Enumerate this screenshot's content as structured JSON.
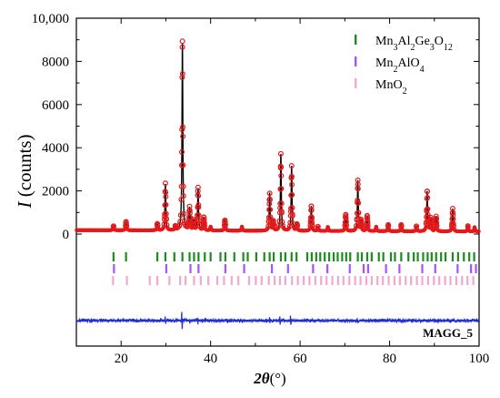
{
  "chart_data": {
    "type": "line",
    "title": "",
    "sample_label": "MAGG_5",
    "xlabel": {
      "var": "2θ",
      "unit": "(°)"
    },
    "ylabel": {
      "var": "I",
      "unit": " (counts)"
    },
    "xlim": [
      10,
      100
    ],
    "ylim": [
      0,
      10000
    ],
    "xticks": [
      20,
      40,
      60,
      80,
      100
    ],
    "yticks": [
      {
        "value": 0,
        "label": "0"
      },
      {
        "value": 2000,
        "label": "2000"
      },
      {
        "value": 4000,
        "label": "4000"
      },
      {
        "value": 6000,
        "label": "6000"
      },
      {
        "value": 8000,
        "label": "8000"
      },
      {
        "value": 10000,
        "label": "10,000"
      }
    ],
    "colors": {
      "observed": "#e31a1c",
      "calculated": "#000000",
      "difference": "#1f2fd6",
      "phase1": "#1c8c1c",
      "phase2": "#a455f5",
      "phase3": "#f3a7cf"
    },
    "background": 180,
    "peaks": [
      [
        18.3,
        200
      ],
      [
        21.1,
        390
      ],
      [
        28.1,
        300
      ],
      [
        29.9,
        2150
      ],
      [
        32.1,
        170
      ],
      [
        33.7,
        8650
      ],
      [
        35.3,
        1050
      ],
      [
        36.2,
        450
      ],
      [
        37.2,
        1950
      ],
      [
        38.5,
        600
      ],
      [
        40.0,
        180
      ],
      [
        43.2,
        480
      ],
      [
        47.0,
        180
      ],
      [
        53.2,
        1750
      ],
      [
        54.0,
        420
      ],
      [
        55.7,
        3550
      ],
      [
        58.1,
        3000
      ],
      [
        59.3,
        300
      ],
      [
        62.5,
        1150
      ],
      [
        64.0,
        200
      ],
      [
        66.2,
        180
      ],
      [
        70.2,
        750
      ],
      [
        72.9,
        2350
      ],
      [
        73.6,
        500
      ],
      [
        75.0,
        700
      ],
      [
        77.0,
        200
      ],
      [
        79.7,
        300
      ],
      [
        82.6,
        300
      ],
      [
        86.0,
        230
      ],
      [
        88.4,
        1850
      ],
      [
        89.2,
        600
      ],
      [
        90.4,
        700
      ],
      [
        94.1,
        1050
      ],
      [
        97.5,
        250
      ],
      [
        99.0,
        200
      ]
    ],
    "difference_features": [
      [
        29.9,
        500
      ],
      [
        33.6,
        1500
      ],
      [
        35.3,
        250
      ],
      [
        37.1,
        450
      ],
      [
        53.2,
        450
      ],
      [
        55.5,
        750
      ],
      [
        57.9,
        650
      ],
      [
        62.4,
        200
      ],
      [
        72.8,
        150
      ],
      [
        88.3,
        150
      ]
    ],
    "series": [
      {
        "name": "Mn3Al2Ge3O12",
        "legend": [
          [
            "Mn",
            ""
          ],
          [
            "3",
            "sub"
          ],
          [
            "Al",
            ""
          ],
          [
            "2",
            "sub"
          ],
          [
            "Ge",
            ""
          ],
          [
            "3",
            "sub"
          ],
          [
            "O",
            ""
          ],
          [
            "12",
            "sub"
          ]
        ],
        "reflections": [
          18.3,
          21.1,
          28.1,
          29.9,
          31.9,
          33.7,
          35.3,
          36.3,
          37.3,
          38.7,
          40.0,
          42.2,
          43.3,
          45.3,
          47.3,
          48.3,
          50.2,
          52.0,
          53.2,
          54.1,
          55.7,
          56.7,
          58.1,
          59.2,
          61.6,
          62.6,
          63.6,
          64.5,
          65.5,
          66.5,
          67.5,
          68.4,
          69.4,
          70.3,
          71.2,
          72.9,
          73.8,
          75.0,
          76.0,
          77.6,
          78.6,
          80.3,
          81.2,
          82.6,
          84.2,
          85.4,
          86.3,
          87.5,
          88.5,
          89.4,
          90.4,
          91.5,
          92.5,
          94.1,
          95.3,
          96.6,
          97.8,
          98.9
        ]
      },
      {
        "name": "Mn2AlO4",
        "legend": [
          [
            "Mn",
            ""
          ],
          [
            "2",
            "sub"
          ],
          [
            "AlO",
            ""
          ],
          [
            "4",
            "sub"
          ]
        ],
        "reflections": [
          18.4,
          30.1,
          35.5,
          37.3,
          43.3,
          47.5,
          53.7,
          57.3,
          62.9,
          66.1,
          71.1,
          74.2,
          75.2,
          79.2,
          82.2,
          87.3,
          90.2,
          95.2,
          98.2,
          99.3
        ]
      },
      {
        "name": "MnO2",
        "legend": [
          [
            "MnO",
            ""
          ],
          [
            "2",
            "sub"
          ]
        ],
        "reflections": [
          18.2,
          21.3,
          26.4,
          28.1,
          30.8,
          33.2,
          34.4,
          36.3,
          37.8,
          39.5,
          41.5,
          43.0,
          44.7,
          46.2,
          48.6,
          50.1,
          51.4,
          53.0,
          54.3,
          55.5,
          56.7,
          58.2,
          59.5,
          60.8,
          62.1,
          63.4,
          64.7,
          65.9,
          67.2,
          68.5,
          69.7,
          71.0,
          72.3,
          73.5,
          74.8,
          76.0,
          77.3,
          78.5,
          79.8,
          81.1,
          82.3,
          83.6,
          84.8,
          86.1,
          87.3,
          88.6,
          89.9,
          91.1,
          92.4,
          93.6,
          94.9,
          96.2,
          97.4,
          98.7
        ]
      }
    ]
  }
}
